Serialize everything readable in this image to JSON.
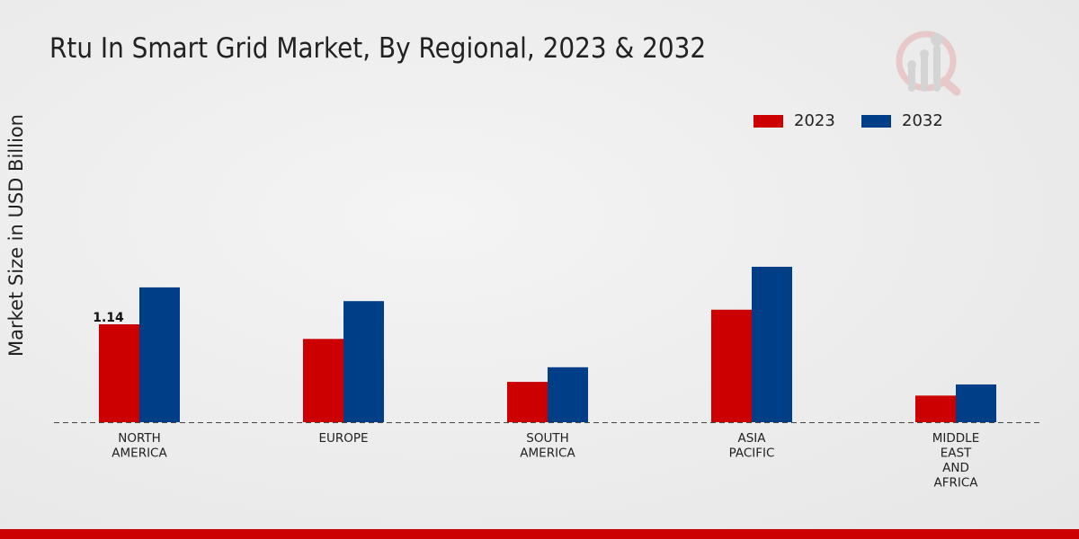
{
  "chart_data": {
    "type": "bar",
    "title": "Rtu In Smart Grid Market, By Regional, 2023 & 2032",
    "xlabel": "",
    "ylabel": "Market Size in USD Billion",
    "categories": [
      [
        "NORTH",
        "AMERICA"
      ],
      [
        "EUROPE"
      ],
      [
        "SOUTH",
        "AMERICA"
      ],
      [
        "ASIA",
        "PACIFIC"
      ],
      [
        "MIDDLE",
        "EAST",
        "AND",
        "AFRICA"
      ]
    ],
    "series": [
      {
        "name": "2023",
        "color": "#cc0000",
        "values": [
          1.14,
          0.97,
          0.47,
          1.31,
          0.31
        ]
      },
      {
        "name": "2032",
        "color": "#003f87",
        "values": [
          1.57,
          1.41,
          0.64,
          1.81,
          0.44
        ]
      }
    ],
    "data_labels": [
      {
        "series": 0,
        "index": 0,
        "text": "1.14"
      }
    ],
    "ylim": [
      0,
      4.2
    ],
    "grid": false,
    "legend_position": "top-right"
  }
}
